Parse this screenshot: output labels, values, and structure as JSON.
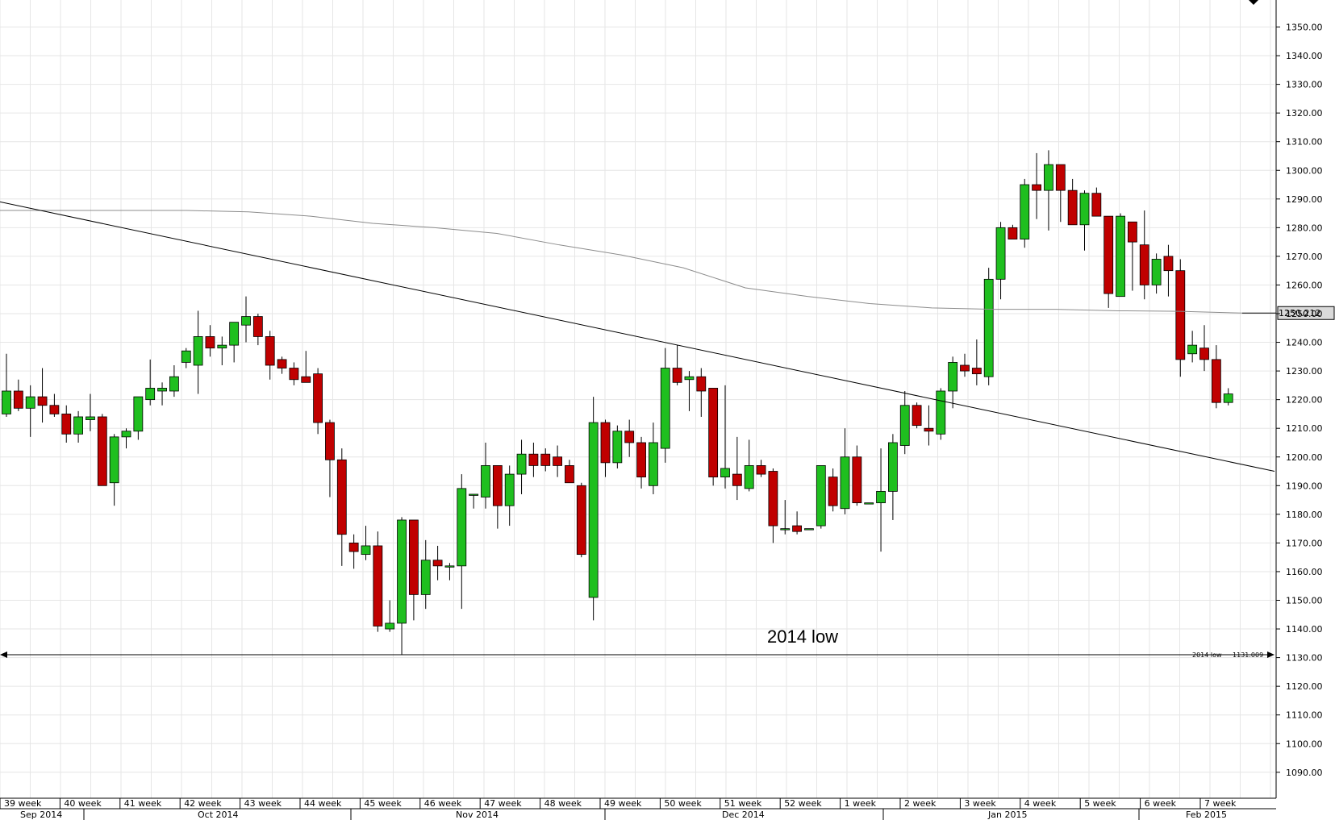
{
  "chart_data": {
    "type": "candlestick",
    "ylim": [
      1080,
      1360
    ],
    "y_ticks": [
      "1090.00",
      "1100.00",
      "1110.00",
      "1120.00",
      "1130.00",
      "1140.00",
      "1150.00",
      "1160.00",
      "1170.00",
      "1180.00",
      "1190.00",
      "1200.00",
      "1210.00",
      "1220.00",
      "1230.00",
      "1240.00",
      "1250.00",
      "1260.00",
      "1270.00",
      "1280.00",
      "1290.00",
      "1300.00",
      "1310.00",
      "1320.00",
      "1330.00",
      "1340.00",
      "1350.00"
    ],
    "week_labels": [
      "39 week",
      "40 week",
      "41 week",
      "42 week",
      "43 week",
      "44 week",
      "45 week",
      "46 week",
      "47 week",
      "48 week",
      "49 week",
      "50 week",
      "51 week",
      "52 week",
      "1 week",
      "2 week",
      "3 week",
      "4 week",
      "5 week",
      "6 week",
      "7 week"
    ],
    "month_labels": [
      "Sep 2014",
      "Oct 2014",
      "Nov 2014",
      "Dec 2014",
      "Jan 2015",
      "Feb 2015"
    ],
    "annotation": "2014 low",
    "support_line": {
      "label": "2014 low",
      "value_label": "1131.009",
      "value": 1131.009
    },
    "current_price_label": "1250.212",
    "current_price": 1250.212,
    "moving_average": [
      1286,
      1286,
      1286,
      1286,
      1285.5,
      1284,
      1281.5,
      1280,
      1278,
      1274,
      1270.5,
      1266,
      1259,
      1256,
      1253.5,
      1252,
      1251.5,
      1251.5,
      1251,
      1250.8,
      1250.2
    ],
    "trendline": {
      "start_value": 1289,
      "end_value": 1195
    },
    "colors": {
      "up": "#1fbf1f",
      "down": "#c00000",
      "grid": "#e6e6e6",
      "line": "#000000",
      "ma": "#8c8c8c"
    },
    "candles": [
      {
        "o": 1215,
        "h": 1236,
        "l": 1214,
        "c": 1223
      },
      {
        "o": 1223,
        "h": 1227,
        "l": 1216,
        "c": 1217
      },
      {
        "o": 1217,
        "h": 1225,
        "l": 1207,
        "c": 1221
      },
      {
        "o": 1221,
        "h": 1231,
        "l": 1212,
        "c": 1218
      },
      {
        "o": 1218,
        "h": 1222,
        "l": 1214,
        "c": 1215
      },
      {
        "o": 1215,
        "h": 1218,
        "l": 1205,
        "c": 1208
      },
      {
        "o": 1208,
        "h": 1216,
        "l": 1205,
        "c": 1214
      },
      {
        "o": 1213,
        "h": 1222,
        "l": 1209,
        "c": 1214
      },
      {
        "o": 1214,
        "h": 1215,
        "l": 1190,
        "c": 1190
      },
      {
        "o": 1191,
        "h": 1208,
        "l": 1183,
        "c": 1207
      },
      {
        "o": 1207,
        "h": 1210,
        "l": 1203,
        "c": 1209
      },
      {
        "o": 1209,
        "h": 1221,
        "l": 1206,
        "c": 1221
      },
      {
        "o": 1220,
        "h": 1234,
        "l": 1218,
        "c": 1224
      },
      {
        "o": 1223,
        "h": 1226,
        "l": 1218,
        "c": 1224
      },
      {
        "o": 1223,
        "h": 1232,
        "l": 1221,
        "c": 1228
      },
      {
        "o": 1233,
        "h": 1238,
        "l": 1231,
        "c": 1237
      },
      {
        "o": 1232,
        "h": 1251,
        "l": 1222,
        "c": 1242
      },
      {
        "o": 1242,
        "h": 1246,
        "l": 1235,
        "c": 1238
      },
      {
        "o": 1238,
        "h": 1242,
        "l": 1232,
        "c": 1239
      },
      {
        "o": 1239,
        "h": 1247,
        "l": 1233,
        "c": 1247
      },
      {
        "o": 1246,
        "h": 1256,
        "l": 1240,
        "c": 1249
      },
      {
        "o": 1249,
        "h": 1250,
        "l": 1239,
        "c": 1242
      },
      {
        "o": 1242,
        "h": 1244,
        "l": 1227,
        "c": 1232
      },
      {
        "o": 1234,
        "h": 1235,
        "l": 1229,
        "c": 1231
      },
      {
        "o": 1231,
        "h": 1233,
        "l": 1225,
        "c": 1227
      },
      {
        "o": 1228,
        "h": 1237,
        "l": 1226,
        "c": 1226
      },
      {
        "o": 1229,
        "h": 1231,
        "l": 1208,
        "c": 1212
      },
      {
        "o": 1212,
        "h": 1213,
        "l": 1186,
        "c": 1199
      },
      {
        "o": 1199,
        "h": 1203,
        "l": 1162,
        "c": 1173
      },
      {
        "o": 1170,
        "h": 1173,
        "l": 1161,
        "c": 1167
      },
      {
        "o": 1166,
        "h": 1176,
        "l": 1164,
        "c": 1169
      },
      {
        "o": 1169,
        "h": 1174,
        "l": 1139,
        "c": 1141
      },
      {
        "o": 1140,
        "h": 1150,
        "l": 1139,
        "c": 1142
      },
      {
        "o": 1142,
        "h": 1179,
        "l": 1131,
        "c": 1178
      },
      {
        "o": 1178,
        "h": 1178,
        "l": 1143,
        "c": 1152
      },
      {
        "o": 1152,
        "h": 1171,
        "l": 1147,
        "c": 1164
      },
      {
        "o": 1164,
        "h": 1169,
        "l": 1157,
        "c": 1162
      },
      {
        "o": 1162,
        "h": 1163,
        "l": 1157,
        "c": 1162
      },
      {
        "o": 1162,
        "h": 1194,
        "l": 1147,
        "c": 1189
      },
      {
        "o": 1187,
        "h": 1187,
        "l": 1182,
        "c": 1187
      },
      {
        "o": 1186,
        "h": 1205,
        "l": 1182,
        "c": 1197
      },
      {
        "o": 1197,
        "h": 1197,
        "l": 1175,
        "c": 1183
      },
      {
        "o": 1183,
        "h": 1197,
        "l": 1176,
        "c": 1194
      },
      {
        "o": 1194,
        "h": 1206,
        "l": 1187,
        "c": 1201
      },
      {
        "o": 1201,
        "h": 1205,
        "l": 1193,
        "c": 1197
      },
      {
        "o": 1201,
        "h": 1203,
        "l": 1195,
        "c": 1197
      },
      {
        "o": 1200,
        "h": 1204,
        "l": 1193,
        "c": 1197
      },
      {
        "o": 1197,
        "h": 1199,
        "l": 1192,
        "c": 1191
      },
      {
        "o": 1190,
        "h": 1191,
        "l": 1165,
        "c": 1166
      },
      {
        "o": 1151,
        "h": 1221,
        "l": 1143,
        "c": 1212
      },
      {
        "o": 1212,
        "h": 1213,
        "l": 1193,
        "c": 1198
      },
      {
        "o": 1198,
        "h": 1211,
        "l": 1196,
        "c": 1209
      },
      {
        "o": 1209,
        "h": 1213,
        "l": 1200,
        "c": 1205
      },
      {
        "o": 1205,
        "h": 1207,
        "l": 1189,
        "c": 1193
      },
      {
        "o": 1190,
        "h": 1212,
        "l": 1187,
        "c": 1205
      },
      {
        "o": 1203,
        "h": 1238,
        "l": 1198,
        "c": 1231
      },
      {
        "o": 1231,
        "h": 1239,
        "l": 1225,
        "c": 1226
      },
      {
        "o": 1227,
        "h": 1230,
        "l": 1216,
        "c": 1228
      },
      {
        "o": 1228,
        "h": 1231,
        "l": 1214,
        "c": 1223
      },
      {
        "o": 1224,
        "h": 1224,
        "l": 1190,
        "c": 1193
      },
      {
        "o": 1193,
        "h": 1225,
        "l": 1189,
        "c": 1196
      },
      {
        "o": 1194,
        "h": 1207,
        "l": 1185,
        "c": 1190
      },
      {
        "o": 1189,
        "h": 1206,
        "l": 1188,
        "c": 1197
      },
      {
        "o": 1197,
        "h": 1199,
        "l": 1193,
        "c": 1194
      },
      {
        "o": 1195,
        "h": 1196,
        "l": 1170,
        "c": 1176
      },
      {
        "o": 1175,
        "h": 1185,
        "l": 1173,
        "c": 1175
      },
      {
        "o": 1176,
        "h": 1181,
        "l": 1173,
        "c": 1174
      },
      {
        "o": 1175,
        "h": 1175,
        "l": 1175,
        "c": 1175
      },
      {
        "o": 1176,
        "h": 1197,
        "l": 1175,
        "c": 1197
      },
      {
        "o": 1193,
        "h": 1196,
        "l": 1181,
        "c": 1183
      },
      {
        "o": 1182,
        "h": 1210,
        "l": 1180,
        "c": 1200
      },
      {
        "o": 1200,
        "h": 1204,
        "l": 1183,
        "c": 1184
      },
      {
        "o": 1184,
        "h": 1184,
        "l": 1184,
        "c": 1184
      },
      {
        "o": 1184,
        "h": 1203,
        "l": 1167,
        "c": 1188
      },
      {
        "o": 1188,
        "h": 1208,
        "l": 1178,
        "c": 1205
      },
      {
        "o": 1204,
        "h": 1223,
        "l": 1201,
        "c": 1218
      },
      {
        "o": 1218,
        "h": 1219,
        "l": 1210,
        "c": 1211
      },
      {
        "o": 1210,
        "h": 1218,
        "l": 1204,
        "c": 1209
      },
      {
        "o": 1208,
        "h": 1224,
        "l": 1206,
        "c": 1223
      },
      {
        "o": 1223,
        "h": 1235,
        "l": 1217,
        "c": 1233
      },
      {
        "o": 1232,
        "h": 1236,
        "l": 1228,
        "c": 1230
      },
      {
        "o": 1231,
        "h": 1241,
        "l": 1225,
        "c": 1229
      },
      {
        "o": 1228,
        "h": 1266,
        "l": 1225,
        "c": 1262
      },
      {
        "o": 1262,
        "h": 1282,
        "l": 1255,
        "c": 1280
      },
      {
        "o": 1280,
        "h": 1281,
        "l": 1276,
        "c": 1276
      },
      {
        "o": 1276,
        "h": 1297,
        "l": 1273,
        "c": 1295
      },
      {
        "o": 1295,
        "h": 1306,
        "l": 1283,
        "c": 1293
      },
      {
        "o": 1293,
        "h": 1307,
        "l": 1279,
        "c": 1302
      },
      {
        "o": 1302,
        "h": 1302,
        "l": 1282,
        "c": 1293
      },
      {
        "o": 1293,
        "h": 1297,
        "l": 1281,
        "c": 1281
      },
      {
        "o": 1281,
        "h": 1293,
        "l": 1272,
        "c": 1292
      },
      {
        "o": 1292,
        "h": 1294,
        "l": 1284,
        "c": 1284
      },
      {
        "o": 1284,
        "h": 1284,
        "l": 1252,
        "c": 1257
      },
      {
        "o": 1256,
        "h": 1285,
        "l": 1256,
        "c": 1284
      },
      {
        "o": 1282,
        "h": 1282,
        "l": 1258,
        "c": 1275
      },
      {
        "o": 1274,
        "h": 1286,
        "l": 1255,
        "c": 1260
      },
      {
        "o": 1260,
        "h": 1271,
        "l": 1257,
        "c": 1269
      },
      {
        "o": 1270,
        "h": 1274,
        "l": 1256,
        "c": 1265
      },
      {
        "o": 1265,
        "h": 1269,
        "l": 1228,
        "c": 1234
      },
      {
        "o": 1236,
        "h": 1244,
        "l": 1233,
        "c": 1239
      },
      {
        "o": 1238,
        "h": 1246,
        "l": 1230,
        "c": 1234
      },
      {
        "o": 1234,
        "h": 1239,
        "l": 1217,
        "c": 1219
      },
      {
        "o": 1219,
        "h": 1224,
        "l": 1218,
        "c": 1222
      }
    ]
  }
}
